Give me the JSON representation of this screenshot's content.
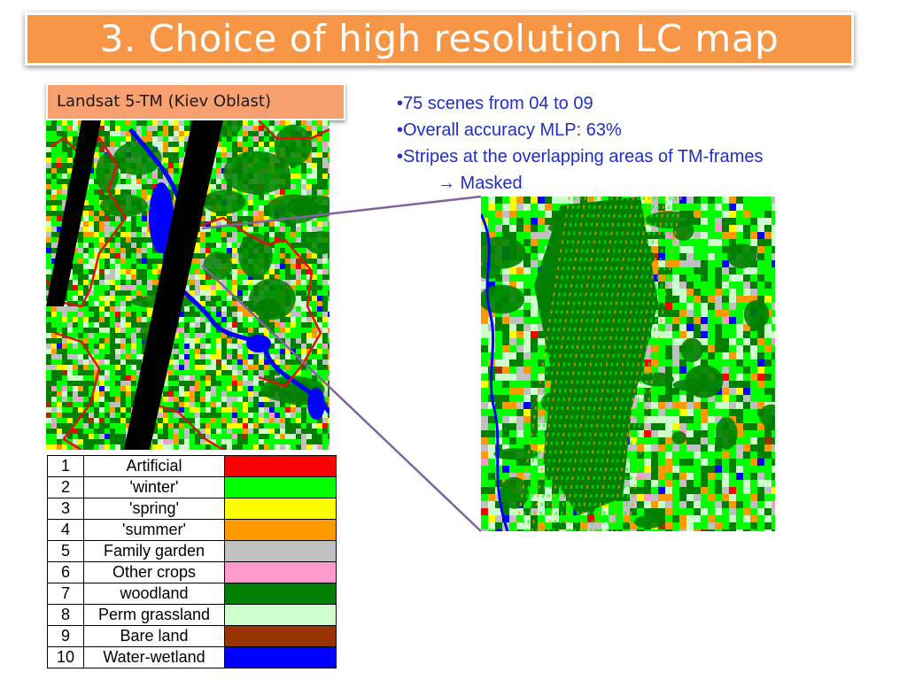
{
  "slide": {
    "title": "3. Choice of high resolution LC map",
    "subtitle": "Landsat 5-TM (Kiev Oblast)"
  },
  "bullets": [
    {
      "text": "•75 scenes from 04 to 09",
      "indent": false
    },
    {
      "text": "•Overall accuracy MLP: 63%",
      "indent": false
    },
    {
      "text": "•Stripes at the overlapping areas of TM-frames",
      "indent": false
    },
    {
      "text": "→ Masked",
      "indent": true
    }
  ],
  "legend": [
    {
      "num": "1",
      "name": "Artificial",
      "color": "#ff0000"
    },
    {
      "num": "2",
      "name": "'winter'",
      "color": "#00ff00"
    },
    {
      "num": "3",
      "name": "'spring'",
      "color": "#ffff00"
    },
    {
      "num": "4",
      "name": "'summer'",
      "color": "#ff9900"
    },
    {
      "num": "5",
      "name": "Family garden",
      "color": "#c0c0c0"
    },
    {
      "num": "6",
      "name": "Other crops",
      "color": "#ff99cc"
    },
    {
      "num": "7",
      "name": "woodland",
      "color": "#007f00"
    },
    {
      "num": "8",
      "name": "Perm grassland",
      "color": "#ccffcc"
    },
    {
      "num": "9",
      "name": "Bare land",
      "color": "#993300"
    },
    {
      "num": "10",
      "name": "Water-wetland",
      "color": "#0000ff"
    }
  ],
  "colors": {
    "title_bar": "#f79646",
    "subtitle_box": "#f9a070",
    "bullet_text": "#1f2ec6",
    "connector_line": "#8064a2",
    "mask_stripe": "#000000",
    "admin_boundary": "#e01010"
  }
}
